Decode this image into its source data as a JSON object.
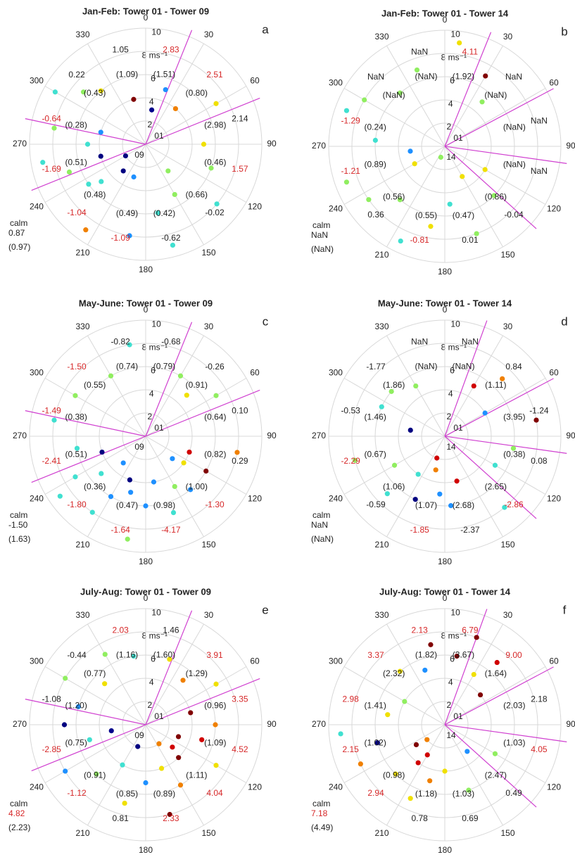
{
  "chart_data": [
    {
      "type": "polar-scatter",
      "title": "Jan-Feb: Tower 01 - Tower 09",
      "panel": "a",
      "thetaticks": [
        0,
        30,
        60,
        90,
        120,
        150,
        180,
        210,
        240,
        270,
        300,
        330
      ],
      "rlim": [
        0,
        10
      ],
      "rticks": [
        2,
        4,
        6,
        {
          "value": 8,
          "label": "8 ms⁻¹"
        },
        10
      ],
      "station_labels": [
        "01",
        "09"
      ],
      "sector_lines": [
        22,
        68,
        248,
        282
      ],
      "sector_labels": [
        "1.05",
        "2.83",
        "2.51",
        "2.14",
        "1.57",
        "-0.02",
        "-0.62",
        "-1.09",
        "-1.04",
        "-1.69",
        "-0.64",
        "0.22"
      ],
      "sector_sublabels": [
        "(1.09)",
        "(1.51)",
        "(0.80)",
        "(2.98)",
        "(0.46)",
        "(0.66)",
        "(0.42)",
        "(0.49)",
        "(0.48)",
        "(0.51)",
        "(0.28)",
        "(0.43)"
      ],
      "sector_label_colors": [
        "#222",
        "#d62728",
        "#d62728",
        "#222",
        "#d62728",
        "#222",
        "#222",
        "#d62728",
        "#d62728",
        "#d62728",
        "#d62728",
        "#222"
      ],
      "calm_label": "calm",
      "calm_value": "0.87",
      "calm_sublabel": "(0.97)",
      "calm_color": "#222",
      "points": {
        "direction": [
          200,
          230,
          250,
          260,
          280,
          300,
          320,
          345,
          20,
          40,
          60,
          90,
          110,
          130,
          150,
          170,
          190,
          220,
          240,
          215,
          270,
          10,
          140,
          165,
          285,
          310,
          255,
          235
        ],
        "speed": [
          3,
          5,
          7,
          9,
          8,
          9,
          6,
          4,
          5,
          4,
          7,
          5,
          6,
          8,
          5,
          6,
          8,
          3,
          2,
          9,
          5,
          3,
          3,
          9,
          4,
          7,
          4,
          6
        ],
        "colors": [
          "#1e90ff",
          "#40e0d0",
          "#90ee60",
          "#40e0d0",
          "#90ee60",
          "#40e0d0",
          "#f0e000",
          "#800000",
          "#1e90ff",
          "#f08000",
          "#f0e000",
          "#f0e000",
          "#90ee60",
          "#40e0d0",
          "#90ee60",
          "#40e0d0",
          "#1e90ff",
          "#000080",
          "#000080",
          "#f08000",
          "#40e0d0",
          "#00008b",
          "#90ee60",
          "#40e0d0",
          "#1e90ff",
          "#90ee60",
          "#000080",
          "#40e0d0"
        ]
      }
    },
    {
      "type": "polar-scatter",
      "title": "Jan-Feb: Tower 01 - Tower 14",
      "panel": "b",
      "thetaticks": [
        0,
        30,
        60,
        90,
        120,
        150,
        180,
        210,
        240,
        270,
        300,
        330
      ],
      "rlim": [
        0,
        10
      ],
      "rticks": [
        2,
        4,
        6,
        {
          "value": 8,
          "label": "8 ms⁻¹"
        },
        10
      ],
      "station_labels": [
        "01",
        "14"
      ],
      "sector_lines": [
        22,
        62,
        98,
        132
      ],
      "sector_labels": [
        "NaN",
        "4.11",
        "NaN",
        "NaN",
        "NaN",
        "-0.04",
        "0.01",
        "-0.81",
        "0.36",
        "-1.21",
        "-1.29",
        "NaN"
      ],
      "sector_sublabels": [
        "(NaN)",
        "(1.92)",
        "(NaN)",
        "(NaN)",
        "(NaN)",
        "(0.86)",
        "(0.47)",
        "(0.55)",
        "(0.56)",
        "(0.89)",
        "(0.24)",
        "(NaN)"
      ],
      "sector_label_colors": [
        "#222",
        "#d62728",
        "#222",
        "#222",
        "#222",
        "#222",
        "#222",
        "#d62728",
        "#222",
        "#d62728",
        "#d62728",
        "#222"
      ],
      "calm_label": "calm",
      "calm_value": "NaN",
      "calm_sublabel": "(NaN)",
      "calm_color": "#222",
      "points": {
        "direction": [
          8,
          30,
          40,
          120,
          135,
          160,
          175,
          190,
          205,
          220,
          235,
          250,
          262,
          275,
          290,
          300,
          320,
          340,
          240,
          200,
          150
        ],
        "speed": [
          9,
          7,
          5,
          4,
          6,
          8,
          5,
          7,
          9,
          6,
          8,
          9,
          3,
          6,
          9,
          8,
          6,
          7,
          3,
          1,
          3
        ],
        "colors": [
          "#f0e000",
          "#800000",
          "#90ee60",
          "#f0e000",
          "#90ee60",
          "#90ee60",
          "#40e0d0",
          "#f0e000",
          "#40e0d0",
          "#90ee60",
          "#90ee60",
          "#90ee60",
          "#1e90ff",
          "#40e0d0",
          "#40e0d0",
          "#90ee60",
          "#90ee60",
          "#90ee60",
          "#f0e000",
          "#90ee60",
          "#f0e000"
        ]
      }
    },
    {
      "type": "polar-scatter",
      "title": "May-June: Tower 01 - Tower 09",
      "panel": "c",
      "thetaticks": [
        0,
        30,
        60,
        90,
        120,
        150,
        180,
        210,
        240,
        270,
        300,
        330
      ],
      "rlim": [
        0,
        10
      ],
      "rticks": [
        2,
        4,
        6,
        {
          "value": 8,
          "label": "8 ms⁻¹"
        },
        10
      ],
      "station_labels": [
        "01",
        "09"
      ],
      "sector_lines": [
        22,
        68,
        248,
        282
      ],
      "sector_labels": [
        "-0.82",
        "-0.68",
        "-0.26",
        "0.10",
        "0.29",
        "-1.30",
        "-4.17",
        "-1.64",
        "-1.80",
        "-2.41",
        "-1.49",
        "-1.50"
      ],
      "sector_sublabels": [
        "(0.74)",
        "(0.79)",
        "(0.91)",
        "(0.64)",
        "(0.82)",
        "(1.00)",
        "(0.98)",
        "(0.47)",
        "(0.36)",
        "(0.51)",
        "(0.38)",
        "(0.55)"
      ],
      "sector_label_colors": [
        "#222",
        "#222",
        "#222",
        "#222",
        "#222",
        "#d62728",
        "#d62728",
        "#d62728",
        "#d62728",
        "#d62728",
        "#d62728",
        "#d62728"
      ],
      "calm_label": "calm",
      "calm_value": "-1.50",
      "calm_sublabel": "(1.63)",
      "calm_color": "#222",
      "points": {
        "direction": [
          200,
          210,
          220,
          230,
          240,
          190,
          180,
          170,
          160,
          150,
          130,
          120,
          110,
          100,
          60,
          45,
          30,
          350,
          330,
          300,
          280,
          260,
          250,
          235,
          215,
          195,
          140,
          125
        ],
        "speed": [
          4,
          6,
          3,
          5,
          7,
          9,
          6,
          4,
          7,
          5,
          3,
          6,
          4,
          8,
          7,
          5,
          6,
          8,
          6,
          7,
          8,
          6,
          4,
          9,
          8,
          5,
          6,
          4
        ],
        "colors": [
          "#000080",
          "#1e90ff",
          "#1e90ff",
          "#40e0d0",
          "#40e0d0",
          "#90ee60",
          "#1e90ff",
          "#1e90ff",
          "#40e0d0",
          "#90ee60",
          "#1e90ff",
          "#800000",
          "#d00000",
          "#f08000",
          "#90ee60",
          "#f0e000",
          "#90ee60",
          "#40e0d0",
          "#90ee60",
          "#90ee60",
          "#40e0d0",
          "#40e0d0",
          "#000080",
          "#40e0d0",
          "#40e0d0",
          "#1e90ff",
          "#1e90ff",
          "#f0e000"
        ]
      }
    },
    {
      "type": "polar-scatter",
      "title": "May-June: Tower 01 - Tower 14",
      "panel": "d",
      "thetaticks": [
        0,
        30,
        60,
        90,
        120,
        150,
        180,
        210,
        240,
        270,
        300,
        330
      ],
      "rlim": [
        0,
        10
      ],
      "rticks": [
        2,
        4,
        6,
        {
          "value": 8,
          "label": "8 ms⁻¹"
        },
        10
      ],
      "station_labels": [
        "01",
        "14"
      ],
      "sector_lines": [
        20,
        62,
        98,
        132
      ],
      "sector_labels": [
        "NaN",
        "NaN",
        "0.84",
        "-1.24",
        "0.08",
        "-2.86",
        "-2.37",
        "-1.85",
        "-0.59",
        "-2.29",
        "-0.53",
        "-1.77"
      ],
      "sector_sublabels": [
        "(NaN)",
        "(NaN)",
        "(1.11)",
        "(3.95)",
        "(0.38)",
        "(2.65)",
        "(2.68)",
        "(1.07)",
        "(1.06)",
        "(0.67)",
        "(1.46)",
        "(1.86)"
      ],
      "sector_label_colors": [
        "#222",
        "#222",
        "#222",
        "#222",
        "#222",
        "#d62728",
        "#222",
        "#d62728",
        "#222",
        "#d62728",
        "#222",
        "#222"
      ],
      "calm_label": "calm",
      "calm_value": "NaN",
      "calm_sublabel": "(NaN)",
      "calm_color": "#222",
      "points": {
        "direction": [
          30,
          45,
          60,
          80,
          100,
          120,
          140,
          165,
          185,
          195,
          205,
          215,
          225,
          240,
          255,
          280,
          295,
          310,
          330,
          200,
          175
        ],
        "speed": [
          5,
          7,
          4,
          8,
          6,
          5,
          8,
          4,
          5,
          3,
          6,
          4,
          7,
          5,
          8,
          3,
          6,
          6,
          5,
          2,
          6
        ],
        "colors": [
          "#d00000",
          "#f08000",
          "#1e90ff",
          "#800000",
          "#90ee60",
          "#40e0d0",
          "#40e0d0",
          "#d00000",
          "#1e90ff",
          "#f08000",
          "#000080",
          "#40e0d0",
          "#40e0d0",
          "#90ee60",
          "#90ee60",
          "#000080",
          "#40e0d0",
          "#90ee60",
          "#90ee60",
          "#d00000",
          "#1e90ff"
        ]
      }
    },
    {
      "type": "polar-scatter",
      "title": "July-Aug: Tower 01 - Tower 09",
      "panel": "e",
      "thetaticks": [
        0,
        30,
        60,
        90,
        120,
        150,
        180,
        210,
        240,
        270,
        300,
        330
      ],
      "rlim": [
        0,
        10
      ],
      "rticks": [
        2,
        4,
        6,
        {
          "value": 8,
          "label": "8 ms⁻¹"
        },
        10
      ],
      "station_labels": [
        "01",
        "09"
      ],
      "sector_lines": [
        22,
        68,
        248,
        282
      ],
      "sector_labels": [
        "2.03",
        "1.46",
        "3.91",
        "3.35",
        "4.52",
        "4.04",
        "2.33",
        "0.81",
        "-1.12",
        "-2.85",
        "-1.08",
        "-0.44"
      ],
      "sector_sublabels": [
        "(1.16)",
        "(1.60)",
        "(1.29)",
        "(0.96)",
        "(1.09)",
        "(1.11)",
        "(0.89)",
        "(0.85)",
        "(0.91)",
        "(0.75)",
        "(1.20)",
        "(0.77)"
      ],
      "sector_label_colors": [
        "#d62728",
        "#222",
        "#d62728",
        "#d62728",
        "#d62728",
        "#d62728",
        "#d62728",
        "#222",
        "#d62728",
        "#d62728",
        "#222",
        "#222"
      ],
      "calm_label": "calm",
      "calm_value": "4.82",
      "calm_sublabel": "(2.23)",
      "calm_color": "#d62728",
      "points": {
        "direction": [
          20,
          40,
          60,
          75,
          90,
          105,
          120,
          135,
          150,
          165,
          180,
          195,
          210,
          225,
          240,
          255,
          270,
          285,
          300,
          315,
          330,
          350,
          110,
          130,
          145,
          160,
          200,
          260
        ],
        "speed": [
          6,
          5,
          7,
          4,
          6,
          5,
          7,
          4,
          6,
          8,
          5,
          7,
          4,
          6,
          8,
          5,
          7,
          6,
          8,
          5,
          7,
          6,
          3,
          3,
          2,
          4,
          2,
          3
        ],
        "colors": [
          "#f0e000",
          "#f08000",
          "#f0e000",
          "#800000",
          "#f08000",
          "#d00000",
          "#f0e000",
          "#800000",
          "#f08000",
          "#800000",
          "#1e90ff",
          "#f0e000",
          "#40e0d0",
          "#90ee60",
          "#1e90ff",
          "#40e0d0",
          "#000080",
          "#1e90ff",
          "#90ee60",
          "#f0e000",
          "#90ee60",
          "#40e0d0",
          "#800000",
          "#d00000",
          "#f08000",
          "#f0e000",
          "#000080",
          "#00008b"
        ]
      }
    },
    {
      "type": "polar-scatter",
      "title": "July-Aug: Tower 01 - Tower 14",
      "panel": "f",
      "thetaticks": [
        0,
        30,
        60,
        90,
        120,
        150,
        180,
        210,
        240,
        270,
        300,
        330
      ],
      "rlim": [
        0,
        10
      ],
      "rticks": [
        2,
        4,
        6,
        {
          "value": 8,
          "label": "8 ms⁻¹"
        },
        10
      ],
      "station_labels": [
        "01",
        "14"
      ],
      "sector_lines": [
        20,
        62,
        98,
        132
      ],
      "sector_labels": [
        "2.13",
        "6.79",
        "9.00",
        "2.18",
        "4.05",
        "0.49",
        "0.69",
        "0.78",
        "2.94",
        "2.15",
        "2.98",
        "3.37"
      ],
      "sector_sublabels": [
        "(1.82)",
        "(3.67)",
        "(1.64)",
        "(2.03)",
        "(1.03)",
        "(2.47)",
        "(1.03)",
        "(1.18)",
        "(0.98)",
        "(1.02)",
        "(1.41)",
        "(2.32)"
      ],
      "sector_label_colors": [
        "#d62728",
        "#d62728",
        "#d62728",
        "#222",
        "#d62728",
        "#222",
        "#222",
        "#222",
        "#d62728",
        "#d62728",
        "#d62728",
        "#d62728"
      ],
      "calm_label": "calm",
      "calm_value": "7.18",
      "calm_sublabel": "(4.49)",
      "calm_color": "#d62728",
      "points": {
        "direction": [
          10,
          20,
          30,
          40,
          50,
          120,
          140,
          160,
          180,
          195,
          205,
          215,
          225,
          235,
          245,
          255,
          265,
          280,
          300,
          320,
          340,
          350,
          230,
          210
        ],
        "speed": [
          6,
          8,
          5,
          7,
          4,
          5,
          3,
          6,
          4,
          5,
          7,
          4,
          6,
          3,
          8,
          6,
          9,
          5,
          4,
          6,
          5,
          7,
          2,
          3
        ],
        "colors": [
          "#800000",
          "#800000",
          "#f0e000",
          "#d00000",
          "#800000",
          "#90ee60",
          "#1e90ff",
          "#90ee60",
          "#f0e000",
          "#f08000",
          "#f0e000",
          "#d00000",
          "#f0e000",
          "#800000",
          "#f08000",
          "#000080",
          "#40e0d0",
          "#f0e000",
          "#90ee60",
          "#f0e000",
          "#1e90ff",
          "#800000",
          "#f08000",
          "#d00000"
        ]
      }
    }
  ]
}
